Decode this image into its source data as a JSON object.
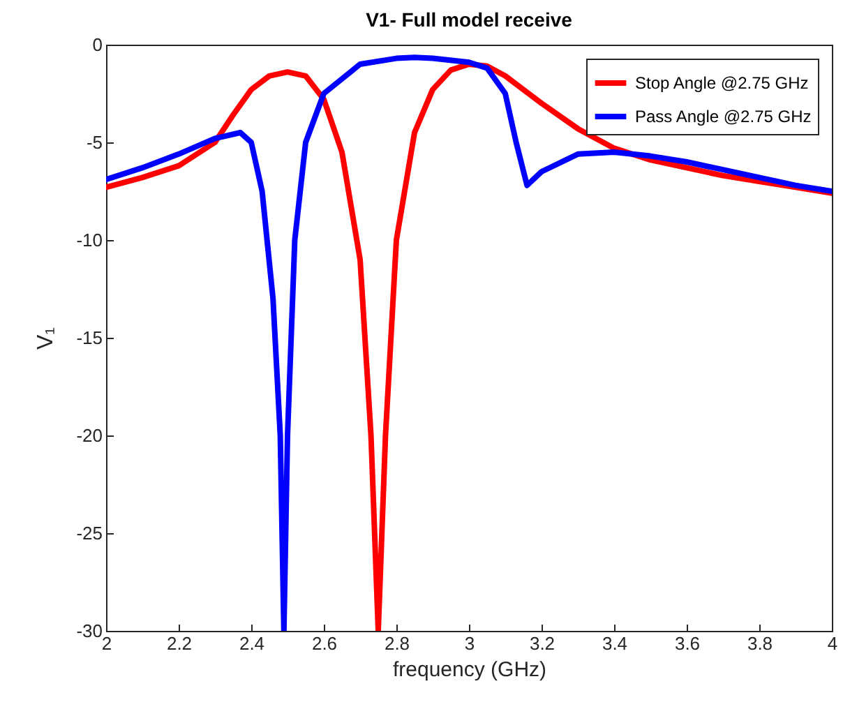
{
  "chart_data": {
    "type": "line",
    "title": "V1- Full model receive",
    "xlabel": "frequency (GHz)",
    "ylabel": "V₁",
    "xlim": [
      2,
      4
    ],
    "ylim": [
      -30,
      0
    ],
    "xticks": [
      2,
      2.2,
      2.4,
      2.6,
      2.8,
      3,
      3.2,
      3.4,
      3.6,
      3.8,
      4
    ],
    "yticks": [
      -30,
      -25,
      -20,
      -15,
      -10,
      -5,
      0
    ],
    "grid": false,
    "legend": "top right",
    "line_style": "solid",
    "marker": "none",
    "series": [
      {
        "name": "Stop Angle @2.75 GHz",
        "color": "#ff0000",
        "x": [
          2,
          2.1,
          2.2,
          2.3,
          2.35,
          2.4,
          2.45,
          2.5,
          2.55,
          2.6,
          2.65,
          2.7,
          2.73,
          2.75,
          2.77,
          2.8,
          2.85,
          2.9,
          2.95,
          3,
          3.05,
          3.1,
          3.2,
          3.3,
          3.4,
          3.5,
          3.6,
          3.7,
          3.8,
          3.9,
          4
        ],
        "values": [
          -7.3,
          -6.8,
          -6.2,
          -5,
          -3.6,
          -2.3,
          -1.6,
          -1.4,
          -1.6,
          -2.8,
          -5.5,
          -11,
          -20,
          -30,
          -20,
          -10,
          -4.5,
          -2.3,
          -1.3,
          -1,
          -1.1,
          -1.6,
          -3,
          -4.3,
          -5.3,
          -5.9,
          -6.3,
          -6.7,
          -7,
          -7.3,
          -7.6
        ]
      },
      {
        "name": "Pass Angle @2.75 GHz",
        "color": "#0000ff",
        "x": [
          2,
          2.1,
          2.2,
          2.3,
          2.37,
          2.4,
          2.43,
          2.46,
          2.48,
          2.49,
          2.5,
          2.52,
          2.55,
          2.6,
          2.7,
          2.8,
          2.85,
          2.9,
          3,
          3.05,
          3.1,
          3.13,
          3.16,
          3.2,
          3.3,
          3.4,
          3.5,
          3.6,
          3.7,
          3.8,
          3.9,
          4
        ],
        "values": [
          -6.9,
          -6.3,
          -5.6,
          -4.8,
          -4.5,
          -5,
          -7.5,
          -13,
          -20,
          -30,
          -20,
          -10,
          -5,
          -2.5,
          -1,
          -0.7,
          -0.65,
          -0.7,
          -0.9,
          -1.2,
          -2.5,
          -5,
          -7.2,
          -6.5,
          -5.6,
          -5.5,
          -5.7,
          -6,
          -6.4,
          -6.8,
          -7.2,
          -7.5
        ]
      }
    ]
  }
}
